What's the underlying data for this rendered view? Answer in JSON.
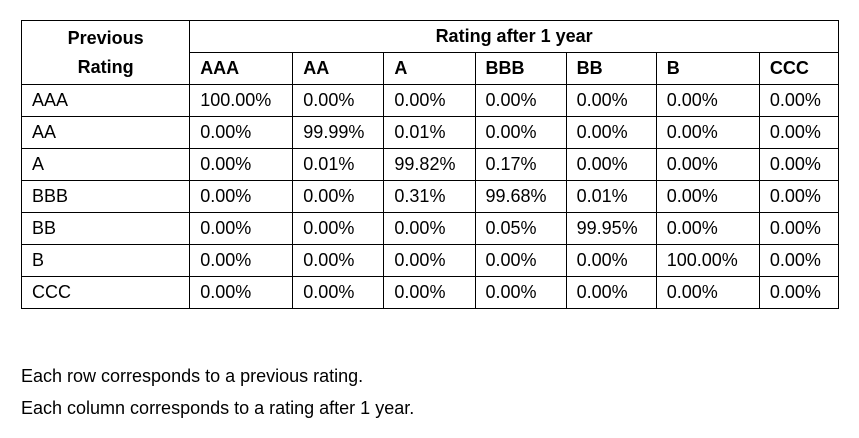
{
  "table": {
    "corner_header_line1": "Previous",
    "corner_header_line2": "Rating",
    "group_header": "Rating after 1 year",
    "columns": [
      "AAA",
      "AA",
      "A",
      "BBB",
      "BB",
      "B",
      "CCC"
    ],
    "rows": [
      {
        "label": "AAA",
        "cells": [
          "100.00%",
          "0.00%",
          "0.00%",
          "0.00%",
          "0.00%",
          "0.00%",
          "0.00%"
        ]
      },
      {
        "label": "AA",
        "cells": [
          "0.00%",
          "99.99%",
          "0.01%",
          "0.00%",
          "0.00%",
          "0.00%",
          "0.00%"
        ]
      },
      {
        "label": "A",
        "cells": [
          "0.00%",
          "0.01%",
          "99.82%",
          "0.17%",
          "0.00%",
          "0.00%",
          "0.00%"
        ]
      },
      {
        "label": "BBB",
        "cells": [
          "0.00%",
          "0.00%",
          "0.31%",
          "99.68%",
          "0.01%",
          "0.00%",
          "0.00%"
        ]
      },
      {
        "label": "BB",
        "cells": [
          "0.00%",
          "0.00%",
          "0.00%",
          "0.05%",
          "99.95%",
          "0.00%",
          "0.00%"
        ]
      },
      {
        "label": "B",
        "cells": [
          "0.00%",
          "0.00%",
          "0.00%",
          "0.00%",
          "0.00%",
          "100.00%",
          "0.00%"
        ]
      },
      {
        "label": "CCC",
        "cells": [
          "0.00%",
          "0.00%",
          "0.00%",
          "0.00%",
          "0.00%",
          "0.00%",
          "0.00%"
        ]
      }
    ]
  },
  "notes": {
    "line1": "Each row corresponds to a previous rating.",
    "line2": "Each column corresponds to a rating after 1 year."
  }
}
